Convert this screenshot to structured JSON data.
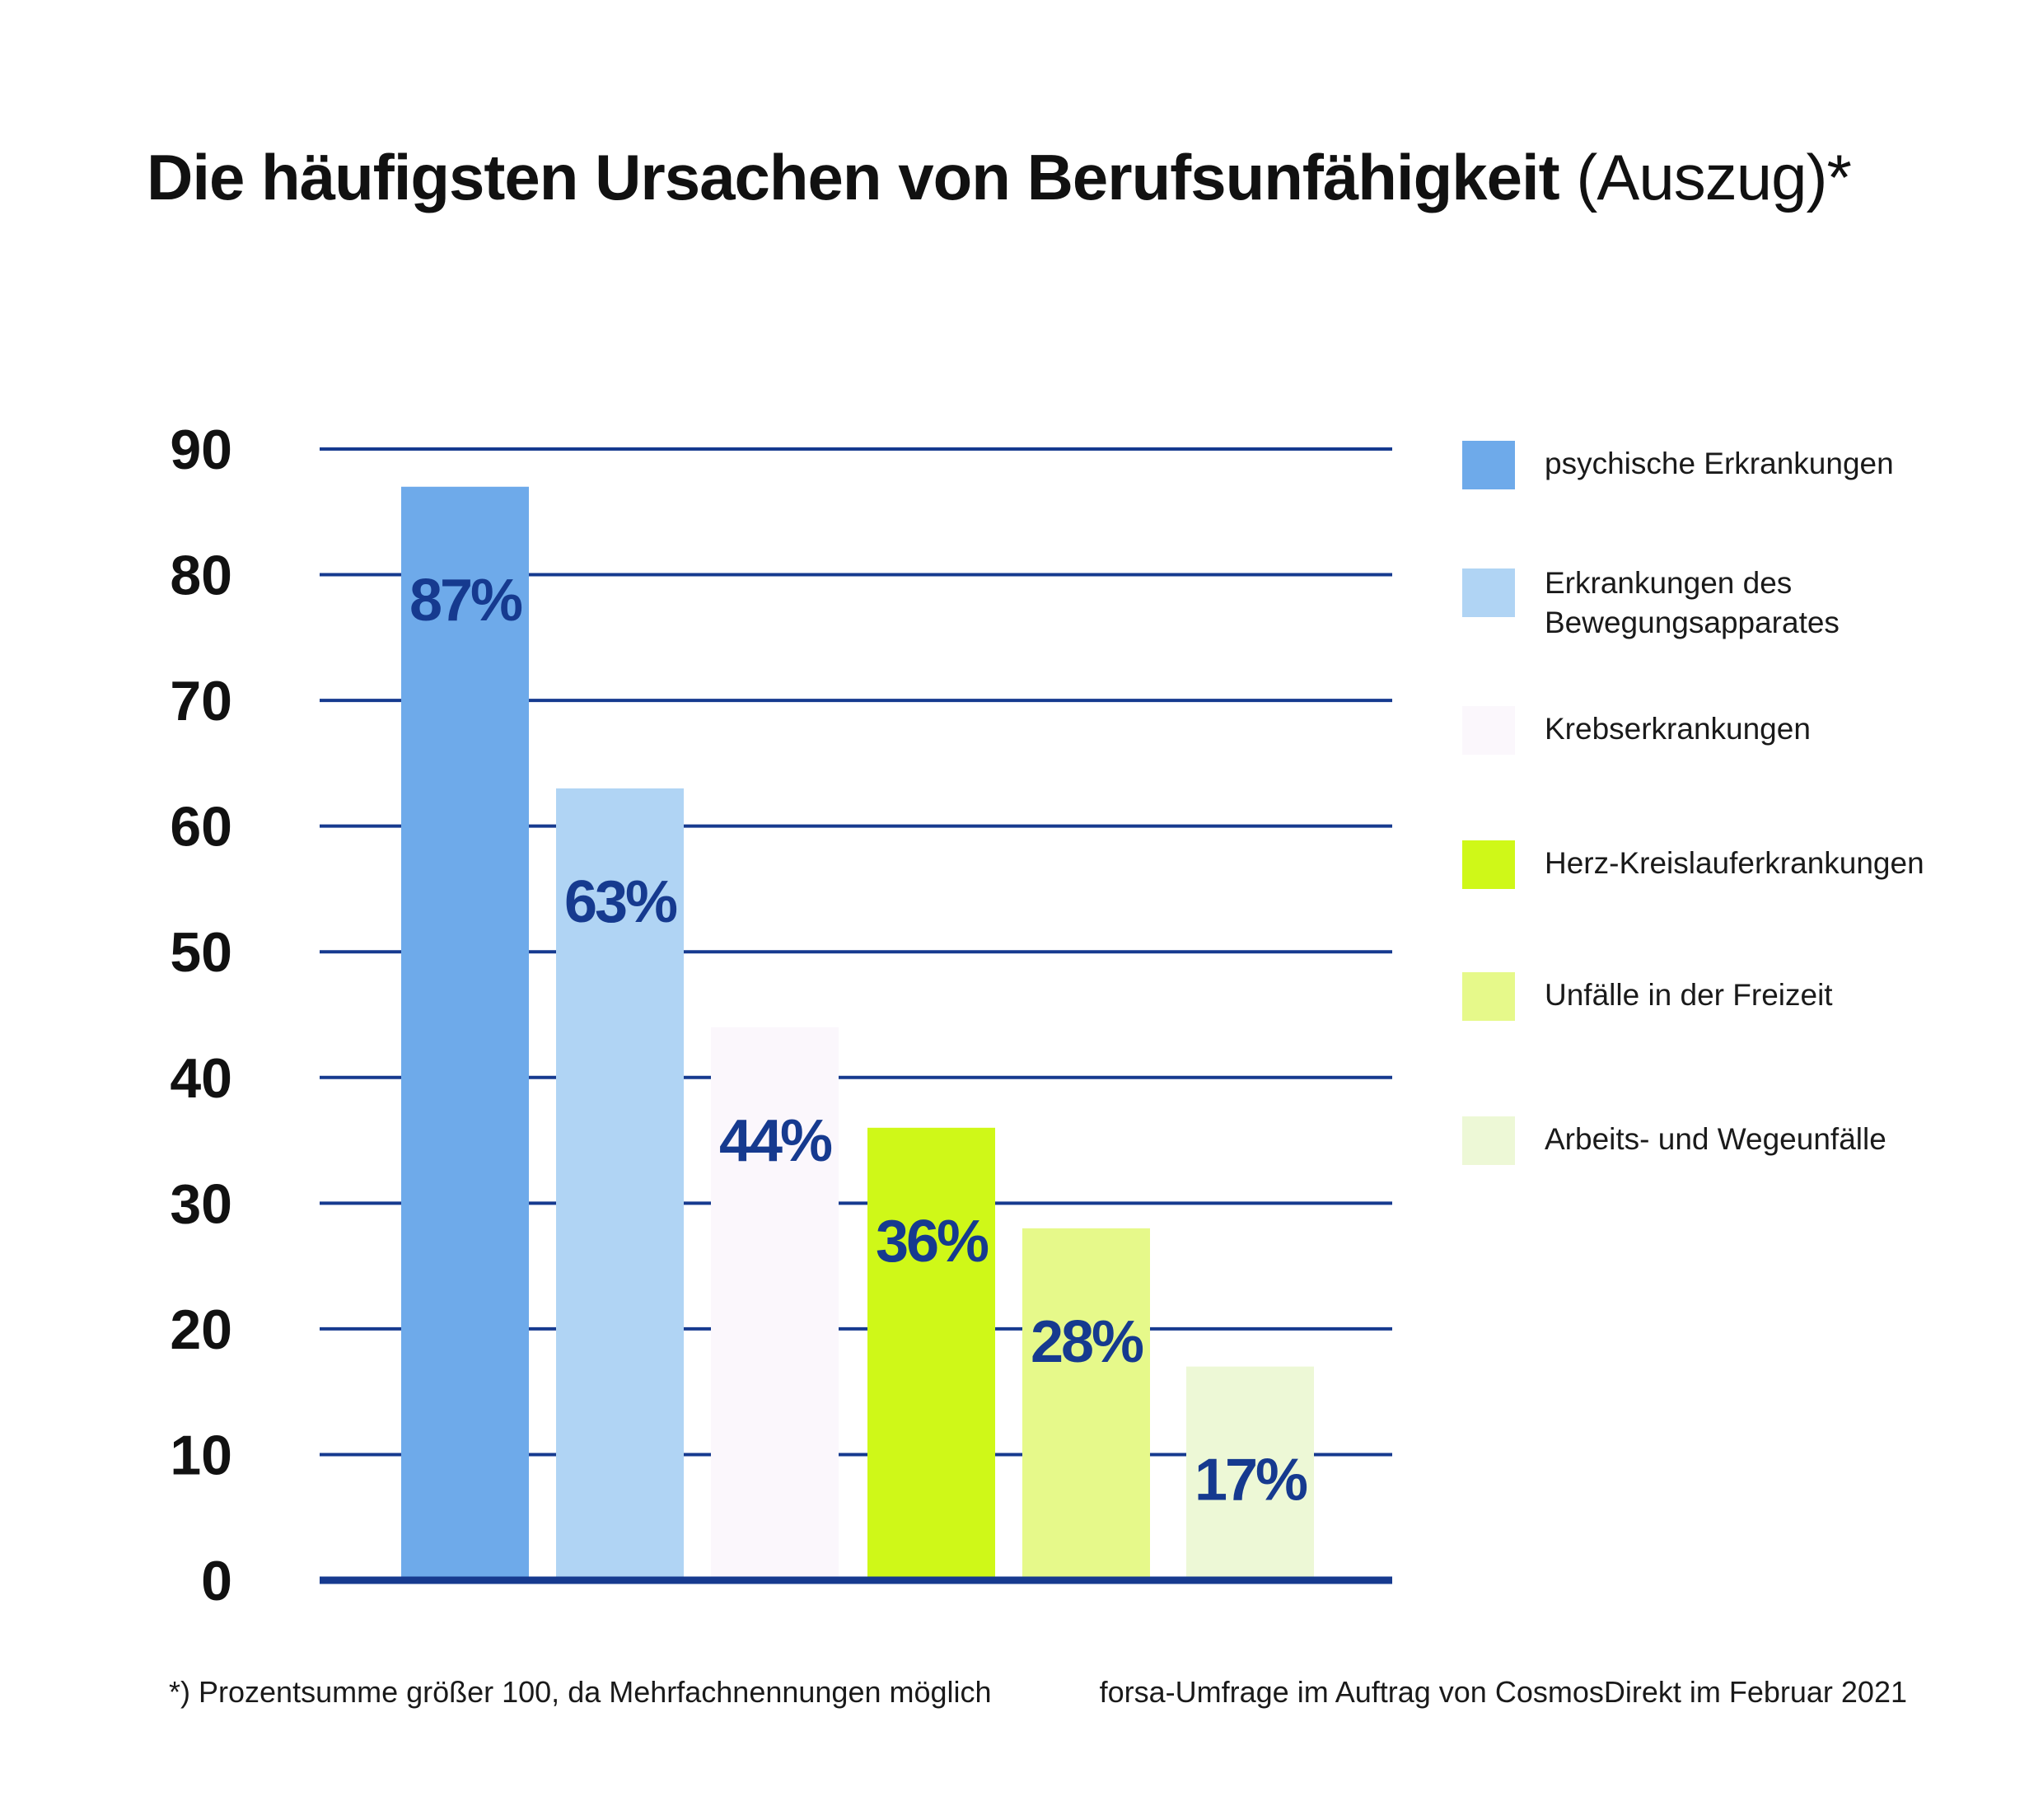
{
  "title": {
    "main": "Die häufigsten Ursachen von Berufsunfähigkeit",
    "suffix": " (Auszug)*"
  },
  "colors": {
    "grid": "#163a8f",
    "axis": "#163a8f",
    "value_label": "#163a8f",
    "tick_label": "#111111"
  },
  "chart_data": {
    "type": "bar",
    "title": "Die häufigsten Ursachen von Berufsunfähigkeit (Auszug)*",
    "xlabel": "",
    "ylabel": "",
    "ylim": [
      0,
      90
    ],
    "yticks": [
      0,
      10,
      20,
      30,
      40,
      50,
      60,
      70,
      80,
      90
    ],
    "grid": true,
    "legend_position": "right",
    "categories": [
      "psychische Erkrankungen",
      "Erkrankungen des Bewegungsapparates",
      "Krebserkrankungen",
      "Herz-Kreislauferkrankungen",
      "Unfälle in der Freizeit",
      "Arbeits- und Wegeunfälle"
    ],
    "values": [
      87,
      63,
      44,
      36,
      28,
      17
    ],
    "value_labels": [
      "87%",
      "63%",
      "44%",
      "36%",
      "28%",
      "17%"
    ],
    "colors": [
      "#6eaaea",
      "#b0d4f4",
      "#fbf7fc",
      "#cff818",
      "#e6f98a",
      "#edf8d6"
    ]
  },
  "legend": [
    {
      "lines": [
        "psychische Erkrankungen"
      ],
      "color": "#6eaaea"
    },
    {
      "lines": [
        "Erkrankungen des",
        "Bewegungsapparates"
      ],
      "color": "#b0d4f4"
    },
    {
      "lines": [
        "Krebserkrankungen"
      ],
      "color": "#fbf7fc"
    },
    {
      "lines": [
        "Herz-Kreislauferkrankungen"
      ],
      "color": "#cff818"
    },
    {
      "lines": [
        "Unfälle in der Freizeit"
      ],
      "color": "#e6f98a"
    },
    {
      "lines": [
        "Arbeits- und Wegeunfälle"
      ],
      "color": "#edf8d6"
    }
  ],
  "footnotes": {
    "left": "*) Prozentsumme größer 100, da Mehrfachnennungen möglich",
    "right": "forsa-Umfrage im Auftrag von CosmosDirekt im Februar 2021"
  }
}
